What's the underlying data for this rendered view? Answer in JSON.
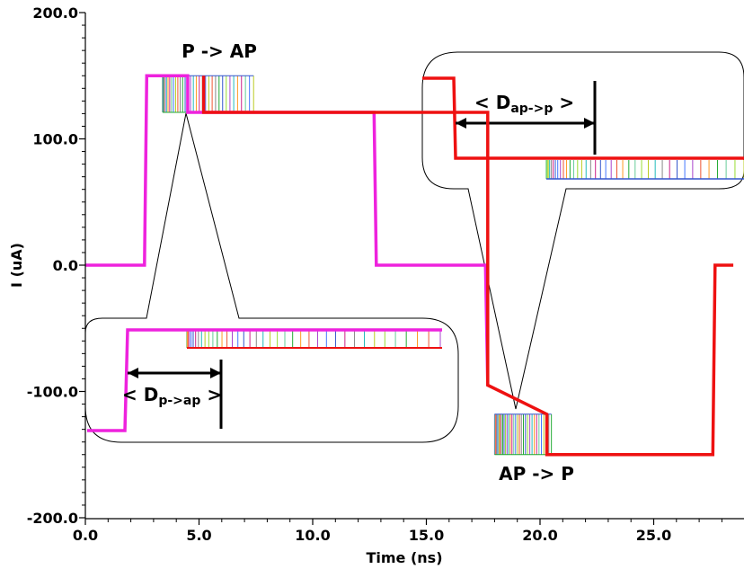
{
  "chart_data": {
    "type": "line",
    "xlabel": "Time (ns)",
    "ylabel": "I (uA)",
    "xlim": [
      0,
      28.5
    ],
    "ylim": [
      -200,
      200
    ],
    "x_ticks": [
      0,
      5,
      10,
      15,
      20,
      25
    ],
    "x_tick_labels": [
      "0.0",
      "5.0",
      "10.0",
      "15.0",
      "20.0",
      "25.0"
    ],
    "y_ticks": [
      200,
      100,
      0,
      -100,
      -200
    ],
    "y_tick_labels": [
      "200.0",
      "100.0",
      "0.0",
      "-100.0",
      "-200.0"
    ],
    "grid": false,
    "series": [
      {
        "color": "#ee22dd",
        "x": [
          0,
          2.6,
          2.7,
          4.5,
          4.5,
          12.7,
          12.8,
          17.6,
          17.7
        ],
        "y": [
          0,
          0,
          150,
          150,
          121,
          121,
          0,
          0,
          -95
        ]
      },
      {
        "color": "#ee1111",
        "x": [
          5.2,
          5.2,
          7.4,
          17.7,
          17.7,
          20.3,
          20.3,
          27.6,
          27.7,
          28.5
        ],
        "y": [
          150,
          121,
          121,
          121,
          -95,
          -118,
          -150,
          -150,
          0,
          0
        ]
      }
    ],
    "switching_bands": [
      {
        "x_start": 3.4,
        "x_end": 7.4,
        "y_top": 150,
        "y_bottom": 121
      },
      {
        "x_start": 18.0,
        "x_end": 20.5,
        "y_top": -118,
        "y_bottom": -150
      }
    ],
    "annotations": {
      "p_to_ap": "P -> AP",
      "ap_to_p": "AP -> P",
      "d_ap_p_open": "< D",
      "d_ap_p_sub": "ap->p",
      "d_ap_p_close": " >",
      "d_p_ap_open": "< D",
      "d_p_ap_sub": "p->ap",
      "d_p_ap_close": " >"
    }
  }
}
